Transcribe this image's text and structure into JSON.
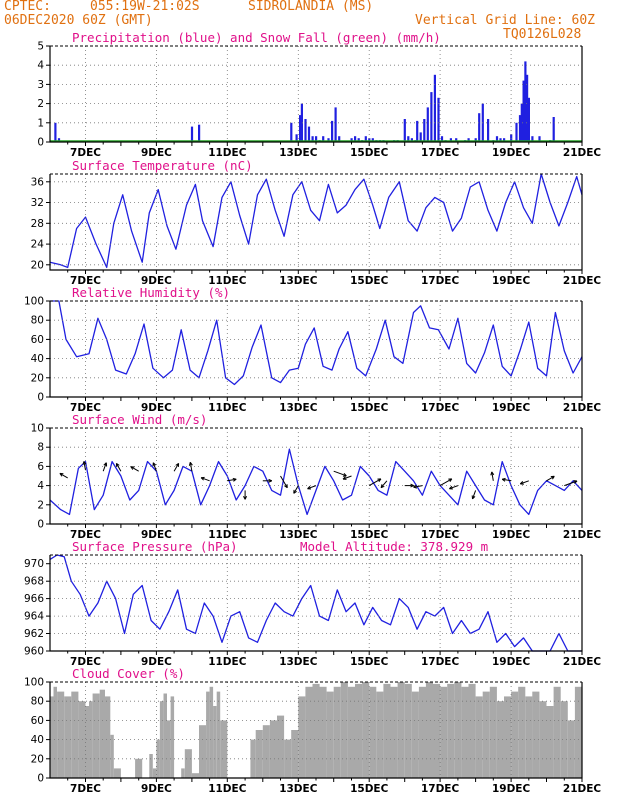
{
  "header": {
    "org": "CPTEC:",
    "coords": "055:19W-21:02S",
    "location": "SIDROLANDIA (MS)",
    "date": "06DEC2020 60Z (GMT)",
    "grid_note": "Vertical Grid Line: 60Z",
    "run_id": "TQ0126L028"
  },
  "colors": {
    "header": "#e07010",
    "title": "#e0108a",
    "line": "#2020e0",
    "snow": "#20a020",
    "cloud": "#a9a9a9"
  },
  "x_ticks": [
    "7DEC",
    "9DEC",
    "11DEC",
    "13DEC",
    "15DEC",
    "17DEC",
    "19DEC",
    "21DEC"
  ],
  "chart_data": [
    {
      "type": "bar",
      "title": "Precipitation (blue) and Snow Fall (green) (mm/h)",
      "ylim": [
        0,
        5
      ],
      "y_ticks": [
        0,
        1,
        2,
        3,
        4,
        5
      ],
      "series": [
        {
          "name": "Precipitation (blue)",
          "color": "#2020e0",
          "x": [
            6.15,
            6.25,
            10.0,
            10.2,
            12.8,
            12.95,
            13.05,
            13.1,
            13.2,
            13.3,
            13.4,
            13.5,
            13.6,
            13.7,
            13.85,
            13.95,
            14.05,
            14.15,
            14.5,
            14.6,
            14.7,
            14.8,
            14.9,
            15.0,
            15.1,
            15.2,
            15.3,
            15.4,
            15.7,
            15.8,
            16.0,
            16.1,
            16.2,
            16.3,
            16.35,
            16.45,
            16.55,
            16.65,
            16.75,
            16.85,
            16.95,
            17.05,
            17.15,
            17.3,
            17.45,
            17.7,
            17.8,
            18.0,
            18.1,
            18.2,
            18.35,
            18.5,
            18.6,
            18.7,
            18.8,
            19.0,
            19.15,
            19.25,
            19.3,
            19.35,
            19.4,
            19.45,
            19.5,
            19.6,
            19.8,
            20.1,
            20.2
          ],
          "values": [
            1.0,
            0.2,
            0.8,
            0.9,
            1.0,
            0.4,
            1.4,
            2.0,
            1.2,
            0.8,
            0.3,
            0.3,
            0.1,
            0.3,
            0.2,
            1.1,
            1.8,
            0.3,
            0.2,
            0.3,
            0.2,
            0.1,
            0.3,
            0.2,
            0.2,
            0.1,
            0.1,
            0.1,
            0.1,
            0.1,
            1.2,
            0.3,
            0.2,
            0.1,
            1.1,
            0.5,
            1.2,
            1.8,
            2.6,
            3.5,
            2.3,
            0.3,
            0.1,
            0.2,
            0.2,
            0.1,
            0.2,
            0.2,
            1.5,
            2.0,
            1.2,
            0.1,
            0.3,
            0.2,
            0.2,
            0.4,
            1.0,
            1.4,
            2.0,
            3.2,
            4.2,
            3.5,
            2.3,
            0.3,
            0.3,
            0.1,
            1.3
          ]
        },
        {
          "name": "Snow Fall (green)",
          "color": "#20a020",
          "x": [
            6.0,
            21.0
          ],
          "values": [
            0,
            0
          ]
        }
      ]
    },
    {
      "type": "line",
      "title": "Surface Temperature (nC)",
      "ylim": [
        19,
        37.5
      ],
      "y_ticks": [
        20,
        24,
        28,
        32,
        36
      ],
      "series": [
        {
          "name": "Surface Temperature (nC)",
          "color": "#2020e0",
          "x": [
            6.0,
            6.3,
            6.5,
            6.75,
            7.0,
            7.3,
            7.6,
            7.8,
            8.05,
            8.3,
            8.6,
            8.8,
            9.05,
            9.3,
            9.55,
            9.85,
            10.1,
            10.3,
            10.6,
            10.85,
            11.1,
            11.35,
            11.6,
            11.85,
            12.1,
            12.35,
            12.6,
            12.85,
            13.1,
            13.35,
            13.6,
            13.85,
            14.1,
            14.35,
            14.6,
            14.85,
            15.1,
            15.3,
            15.55,
            15.85,
            16.1,
            16.35,
            16.6,
            16.85,
            17.1,
            17.35,
            17.6,
            17.85,
            18.1,
            18.35,
            18.6,
            18.85,
            19.1,
            19.35,
            19.6,
            19.85,
            20.1,
            20.35,
            20.6,
            20.85,
            21.0
          ],
          "values": [
            20.5,
            20.0,
            19.5,
            27.0,
            29.2,
            24.0,
            19.5,
            28.0,
            33.5,
            26.5,
            20.5,
            30.0,
            34.5,
            27.5,
            23.0,
            31.5,
            35.5,
            28.5,
            23.5,
            33.0,
            36.0,
            29.5,
            24.0,
            33.5,
            36.5,
            30.5,
            25.5,
            33.5,
            36.0,
            30.5,
            28.5,
            35.5,
            30.0,
            31.5,
            34.5,
            36.5,
            31.5,
            27.0,
            33.0,
            36.0,
            28.5,
            26.5,
            31.0,
            33.0,
            32.0,
            26.5,
            29.0,
            35.0,
            36.0,
            30.5,
            26.5,
            32.0,
            36.0,
            31.0,
            28.0,
            37.5,
            32.0,
            27.5,
            32.0,
            37.0,
            33.5
          ]
        }
      ]
    },
    {
      "type": "line",
      "title": "Relative Humidity (%)",
      "ylim": [
        0,
        100
      ],
      "y_ticks": [
        0,
        20,
        40,
        60,
        80,
        100
      ],
      "series": [
        {
          "name": "Relative Humidity (%)",
          "color": "#2020e0",
          "x": [
            6.0,
            6.25,
            6.45,
            6.75,
            7.1,
            7.35,
            7.6,
            7.85,
            8.15,
            8.4,
            8.65,
            8.9,
            9.2,
            9.45,
            9.7,
            9.95,
            10.2,
            10.45,
            10.7,
            10.95,
            11.2,
            11.45,
            11.7,
            11.95,
            12.25,
            12.5,
            12.75,
            13.0,
            13.2,
            13.45,
            13.7,
            13.95,
            14.15,
            14.4,
            14.65,
            14.9,
            15.2,
            15.45,
            15.7,
            15.95,
            16.25,
            16.45,
            16.7,
            16.95,
            17.25,
            17.5,
            17.75,
            18.0,
            18.25,
            18.5,
            18.75,
            19.0,
            19.25,
            19.5,
            19.75,
            20.0,
            20.25,
            20.5,
            20.75,
            21.0
          ],
          "values": [
            100,
            100,
            60,
            42,
            45,
            82,
            60,
            28,
            24,
            45,
            76,
            30,
            20,
            28,
            70,
            28,
            20,
            48,
            80,
            20,
            13,
            22,
            52,
            75,
            20,
            15,
            28,
            30,
            55,
            72,
            32,
            28,
            50,
            68,
            30,
            22,
            50,
            80,
            42,
            35,
            88,
            95,
            72,
            70,
            50,
            82,
            35,
            25,
            46,
            75,
            32,
            22,
            48,
            78,
            30,
            22,
            88,
            48,
            25,
            42
          ]
        }
      ]
    },
    {
      "type": "line",
      "title": "Surface Wind (m/s)",
      "ylim": [
        0,
        10
      ],
      "y_ticks": [
        0,
        2,
        4,
        6,
        8,
        10
      ],
      "series": [
        {
          "name": "Surface Wind (m/s)",
          "color": "#2020e0",
          "x": [
            6.0,
            6.3,
            6.55,
            6.8,
            7.0,
            7.25,
            7.5,
            7.75,
            8.0,
            8.25,
            8.5,
            8.75,
            9.0,
            9.25,
            9.5,
            9.75,
            10.0,
            10.25,
            10.5,
            10.75,
            11.0,
            11.25,
            11.5,
            11.75,
            12.0,
            12.25,
            12.5,
            12.75,
            13.0,
            13.25,
            13.5,
            13.75,
            14.0,
            14.25,
            14.5,
            14.75,
            15.0,
            15.25,
            15.5,
            15.75,
            16.0,
            16.25,
            16.5,
            16.75,
            17.0,
            17.25,
            17.5,
            17.75,
            18.0,
            18.25,
            18.5,
            18.75,
            19.0,
            19.25,
            19.5,
            19.75,
            20.0,
            20.25,
            20.5,
            20.75,
            21.0
          ],
          "values": [
            2.5,
            1.5,
            1.0,
            5.8,
            6.5,
            1.5,
            3.0,
            6.5,
            5.0,
            2.5,
            3.5,
            6.5,
            5.5,
            2.0,
            3.5,
            6.0,
            5.5,
            2.0,
            4.0,
            6.5,
            5.0,
            2.5,
            4.0,
            6.0,
            5.5,
            3.5,
            3.0,
            7.8,
            4.0,
            1.0,
            3.5,
            6.0,
            4.5,
            2.5,
            3.0,
            6.0,
            5.0,
            3.5,
            3.0,
            6.5,
            5.5,
            4.5,
            3.0,
            5.5,
            4.0,
            3.0,
            2.0,
            5.5,
            4.0,
            2.5,
            2.0,
            6.5,
            4.0,
            2.0,
            1.0,
            3.5,
            4.5,
            4.0,
            3.5,
            4.5,
            3.5
          ]
        }
      ]
    },
    {
      "type": "line",
      "title": "Surface Pressure (hPa)",
      "annotation": "Model Altitude: 378.929 m",
      "ylim": [
        960,
        971
      ],
      "y_ticks": [
        960,
        962,
        964,
        966,
        968,
        970
      ],
      "series": [
        {
          "name": "Surface Pressure (hPa)",
          "color": "#2020e0",
          "x": [
            6.0,
            6.2,
            6.4,
            6.6,
            6.85,
            7.1,
            7.35,
            7.6,
            7.85,
            8.1,
            8.35,
            8.6,
            8.85,
            9.1,
            9.35,
            9.6,
            9.85,
            10.1,
            10.35,
            10.6,
            10.85,
            11.1,
            11.35,
            11.6,
            11.85,
            12.1,
            12.35,
            12.6,
            12.85,
            13.1,
            13.35,
            13.6,
            13.85,
            14.1,
            14.35,
            14.6,
            14.85,
            15.1,
            15.35,
            15.6,
            15.85,
            16.1,
            16.35,
            16.6,
            16.85,
            17.1,
            17.35,
            17.6,
            17.85,
            18.1,
            18.35,
            18.6,
            18.85,
            19.1,
            19.35,
            19.6,
            19.85,
            20.1,
            20.35,
            20.6,
            20.85,
            21.0
          ],
          "values": [
            970.5,
            971.0,
            970.8,
            968.0,
            966.5,
            964.0,
            965.5,
            968.0,
            966.0,
            962.0,
            966.5,
            967.5,
            963.5,
            962.5,
            964.5,
            967.0,
            962.5,
            962.0,
            965.5,
            964.0,
            961.0,
            964.0,
            964.5,
            961.5,
            961.0,
            963.5,
            965.5,
            964.5,
            964.0,
            966.0,
            967.5,
            964.0,
            963.5,
            967.0,
            964.5,
            965.5,
            963.0,
            965.0,
            963.5,
            963.0,
            966.0,
            965.0,
            962.5,
            964.5,
            964.0,
            965.0,
            962.0,
            963.5,
            962.0,
            962.5,
            964.5,
            961.0,
            962.0,
            960.5,
            961.5,
            960.0,
            959.0,
            960.0,
            962.0,
            959.5,
            959.0,
            959.5
          ]
        }
      ]
    },
    {
      "type": "area",
      "title": "Cloud Cover (%)",
      "ylim": [
        0,
        100
      ],
      "y_ticks": [
        0,
        20,
        40,
        60,
        80,
        100
      ],
      "series": [
        {
          "name": "Cloud Cover (%)",
          "color": "#a9a9a9",
          "x": [
            6.0,
            6.1,
            6.2,
            6.4,
            6.6,
            6.8,
            7.0,
            7.1,
            7.2,
            7.4,
            7.55,
            7.7,
            7.8,
            8.0,
            8.2,
            8.4,
            8.6,
            8.8,
            8.9,
            9.0,
            9.1,
            9.2,
            9.3,
            9.4,
            9.5,
            9.6,
            9.7,
            9.8,
            10.0,
            10.2,
            10.4,
            10.5,
            10.6,
            10.7,
            10.8,
            11.0,
            11.2,
            11.4,
            11.6,
            11.65,
            11.8,
            12.0,
            12.2,
            12.4,
            12.6,
            12.8,
            13.0,
            13.2,
            13.4,
            13.6,
            13.8,
            14.0,
            14.2,
            14.4,
            14.6,
            14.8,
            15.0,
            15.2,
            15.4,
            15.6,
            15.8,
            16.0,
            16.2,
            16.4,
            16.6,
            16.8,
            17.0,
            17.2,
            17.4,
            17.6,
            17.8,
            18.0,
            18.2,
            18.4,
            18.6,
            18.8,
            19.0,
            19.2,
            19.4,
            19.6,
            19.8,
            20.0,
            20.2,
            20.4,
            20.6,
            20.8,
            21.0
          ],
          "values": [
            85,
            95,
            90,
            85,
            90,
            80,
            75,
            80,
            88,
            92,
            85,
            45,
            10,
            0,
            0,
            20,
            0,
            25,
            10,
            40,
            80,
            88,
            60,
            85,
            0,
            0,
            10,
            30,
            5,
            55,
            90,
            95,
            75,
            90,
            60,
            0,
            0,
            0,
            0,
            40,
            50,
            55,
            60,
            65,
            40,
            50,
            85,
            95,
            98,
            95,
            90,
            95,
            100,
            95,
            98,
            100,
            95,
            90,
            98,
            95,
            100,
            98,
            90,
            95,
            100,
            98,
            95,
            98,
            100,
            95,
            98,
            85,
            90,
            95,
            80,
            85,
            90,
            95,
            85,
            90,
            80,
            75,
            95,
            80,
            60,
            95,
            70
          ]
        }
      ]
    }
  ],
  "wind_vectors": [
    {
      "x": 6.5,
      "y": 4.8,
      "angle": 150,
      "len": 1
    },
    {
      "x": 7.0,
      "y": 5.6,
      "angle": 100,
      "len": 1
    },
    {
      "x": 7.5,
      "y": 5.5,
      "angle": 70,
      "len": 1
    },
    {
      "x": 8.0,
      "y": 5.5,
      "angle": 120,
      "len": 1
    },
    {
      "x": 8.5,
      "y": 5.5,
      "angle": 150,
      "len": 1
    },
    {
      "x": 9.0,
      "y": 5.5,
      "angle": 110,
      "len": 1
    },
    {
      "x": 9.5,
      "y": 5.5,
      "angle": 60,
      "len": 1
    },
    {
      "x": 10.0,
      "y": 5.5,
      "angle": 100,
      "len": 1
    },
    {
      "x": 10.5,
      "y": 4.5,
      "angle": 160,
      "len": 1
    },
    {
      "x": 11.0,
      "y": 4.5,
      "angle": 10,
      "len": 1
    },
    {
      "x": 11.5,
      "y": 3.5,
      "angle": 270,
      "len": 1
    },
    {
      "x": 12.0,
      "y": 4.5,
      "angle": 0,
      "len": 1
    },
    {
      "x": 12.5,
      "y": 5.0,
      "angle": 300,
      "len": 1.5
    },
    {
      "x": 13.0,
      "y": 4.0,
      "angle": 240,
      "len": 1
    },
    {
      "x": 13.5,
      "y": 4.0,
      "angle": 200,
      "len": 1
    },
    {
      "x": 14.0,
      "y": 5.5,
      "angle": 340,
      "len": 1.5
    },
    {
      "x": 14.5,
      "y": 5.0,
      "angle": 200,
      "len": 1
    },
    {
      "x": 15.0,
      "y": 4.0,
      "angle": 30,
      "len": 1.5
    },
    {
      "x": 15.5,
      "y": 4.5,
      "angle": 230,
      "len": 1
    },
    {
      "x": 16.0,
      "y": 4.0,
      "angle": 0,
      "len": 1
    },
    {
      "x": 16.5,
      "y": 4.0,
      "angle": 190,
      "len": 1
    },
    {
      "x": 17.0,
      "y": 4.0,
      "angle": 30,
      "len": 1.5
    },
    {
      "x": 17.5,
      "y": 4.0,
      "angle": 200,
      "len": 1
    },
    {
      "x": 18.0,
      "y": 3.5,
      "angle": 250,
      "len": 1
    },
    {
      "x": 18.5,
      "y": 4.5,
      "angle": 100,
      "len": 1
    },
    {
      "x": 19.0,
      "y": 4.5,
      "angle": 170,
      "len": 1
    },
    {
      "x": 19.5,
      "y": 4.5,
      "angle": 200,
      "len": 1
    },
    {
      "x": 20.0,
      "y": 4.5,
      "angle": 30,
      "len": 1
    },
    {
      "x": 20.5,
      "y": 4.0,
      "angle": 20,
      "len": 1.5
    }
  ]
}
